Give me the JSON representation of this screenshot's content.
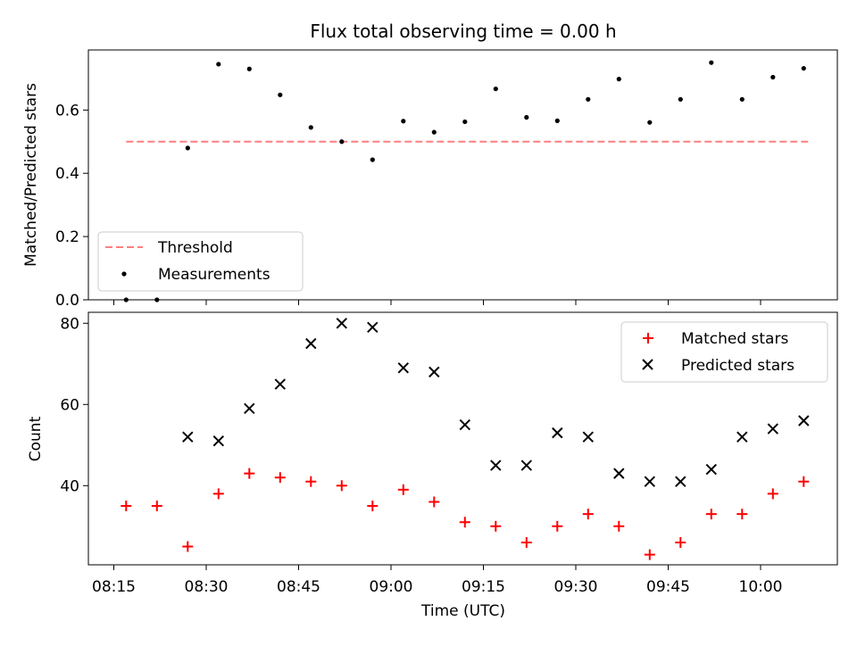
{
  "chart_data": [
    {
      "type": "scatter",
      "title": "Flux total observing time = 0.00 h",
      "ylabel": "Matched/Predicted stars",
      "xlabel": "",
      "ylim": [
        0,
        0.79
      ],
      "yticks": [
        0.0,
        0.2,
        0.4,
        0.6
      ],
      "ytick_labels": [
        "0.0",
        "0.2",
        "0.4",
        "0.6"
      ],
      "legend_position": "lower-left",
      "series": [
        {
          "name": "Threshold",
          "kind": "line",
          "style": "dashed",
          "color": "#ff7f7f",
          "x": [
            "08:17",
            "10:08"
          ],
          "y": [
            0.5,
            0.5
          ]
        },
        {
          "name": "Measurements",
          "kind": "scatter",
          "marker": "dot",
          "color": "#000000",
          "x": [
            "08:17",
            "08:22",
            "08:27",
            "08:32",
            "08:37",
            "08:42",
            "08:47",
            "08:52",
            "08:57",
            "09:02",
            "09:07",
            "09:12",
            "09:17",
            "09:22",
            "09:27",
            "09:32",
            "09:37",
            "09:42",
            "09:47",
            "09:52",
            "09:57",
            "10:02",
            "10:07"
          ],
          "y": [
            0.0,
            0.0,
            0.48,
            0.745,
            0.73,
            0.648,
            0.545,
            0.5,
            0.443,
            0.565,
            0.53,
            0.563,
            0.667,
            0.577,
            0.566,
            0.634,
            0.698,
            0.561,
            0.634,
            0.75,
            0.634,
            0.704,
            0.732
          ]
        }
      ]
    },
    {
      "type": "scatter",
      "xlabel": "Time (UTC)",
      "ylabel": "Count",
      "ylim": [
        20.5,
        82.7
      ],
      "yticks": [
        40,
        60,
        80
      ],
      "ytick_labels": [
        "40",
        "60",
        "80"
      ],
      "x_tick_labels": [
        "08:15",
        "08:30",
        "08:45",
        "09:00",
        "09:15",
        "09:30",
        "09:45",
        "10:00"
      ],
      "legend_position": "top-right",
      "series": [
        {
          "name": "Matched stars",
          "marker": "plus",
          "color": "#ff0000",
          "x": [
            "08:17",
            "08:22",
            "08:27",
            "08:32",
            "08:37",
            "08:42",
            "08:47",
            "08:52",
            "08:57",
            "09:02",
            "09:07",
            "09:12",
            "09:17",
            "09:22",
            "09:27",
            "09:32",
            "09:37",
            "09:42",
            "09:47",
            "09:52",
            "09:57",
            "10:02",
            "10:07"
          ],
          "y": [
            35,
            35,
            25,
            38,
            43,
            42,
            41,
            40,
            35,
            39,
            36,
            31,
            30,
            26,
            30,
            33,
            30,
            23,
            26,
            33,
            33,
            38,
            41
          ]
        },
        {
          "name": "Predicted stars",
          "marker": "x",
          "color": "#000000",
          "x": [
            "08:27",
            "08:32",
            "08:37",
            "08:42",
            "08:47",
            "08:52",
            "08:57",
            "09:02",
            "09:07",
            "09:12",
            "09:17",
            "09:22",
            "09:27",
            "09:32",
            "09:37",
            "09:42",
            "09:47",
            "09:52",
            "09:57",
            "10:02",
            "10:07"
          ],
          "y": [
            52,
            51,
            59,
            65,
            75,
            80,
            79,
            69,
            68,
            55,
            45,
            45,
            53,
            52,
            43,
            41,
            41,
            44,
            52,
            54,
            56
          ]
        }
      ]
    }
  ]
}
